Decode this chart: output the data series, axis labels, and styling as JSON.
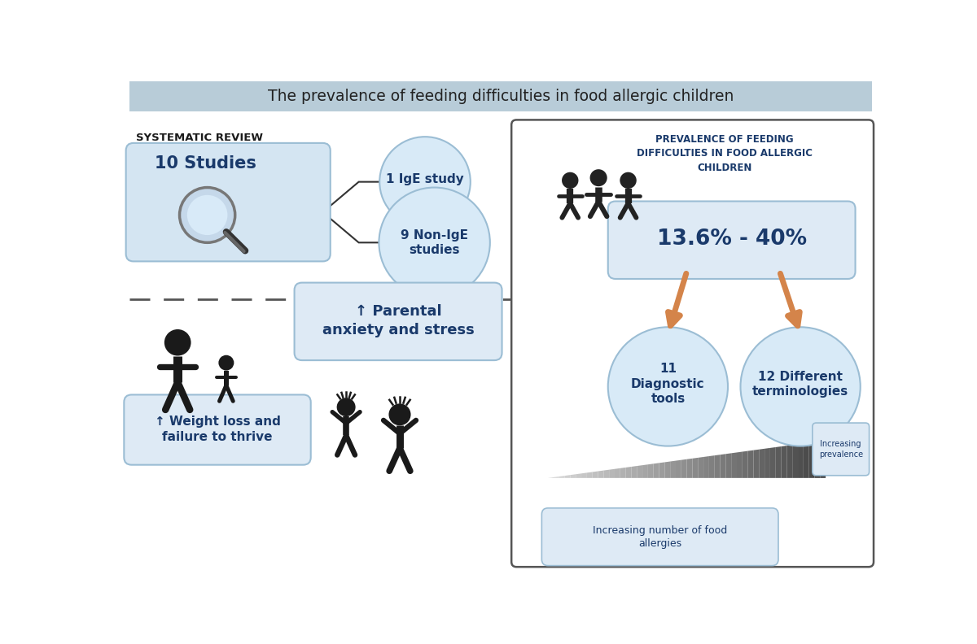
{
  "title": "The prevalence of feeding difficulties in food allergic children",
  "title_bg": "#b8ccd8",
  "title_color": "#222222",
  "bg_color": "#ffffff",
  "light_blue": "#d4e5f2",
  "light_blue2": "#deeaf5",
  "dark_blue": "#1a3a6b",
  "circle_fill": "#d8eaf7",
  "circle_edge": "#9bbdd4",
  "box_edge": "#9bbdd4",
  "orange_arrow": "#d4844a",
  "text_black": "#1a1a1a",
  "syst_review_label": "SYSTEMATIC REVIEW",
  "studies_text": "10 Studies",
  "ige_text": "1 IgE study",
  "non_ige_text": "9 Non-IgE\nstudies",
  "prevalence_title": "PREVALENCE OF FEEDING\nDIFFICULTIES IN FOOD ALLERGIC\nCHILDREN",
  "percent_text": "13.6% - 40%",
  "diagnostic_text": "11\nDiagnostic\ntools",
  "terminologies_text": "12 Different\nterminologies",
  "weight_text": "↑ Weight loss and\nfailure to thrive",
  "parental_text": "↑ Parental\nanxiety and stress",
  "increasing_food": "Increasing number of food\nallergies",
  "increasing_prev": "Increasing\nprevalence"
}
